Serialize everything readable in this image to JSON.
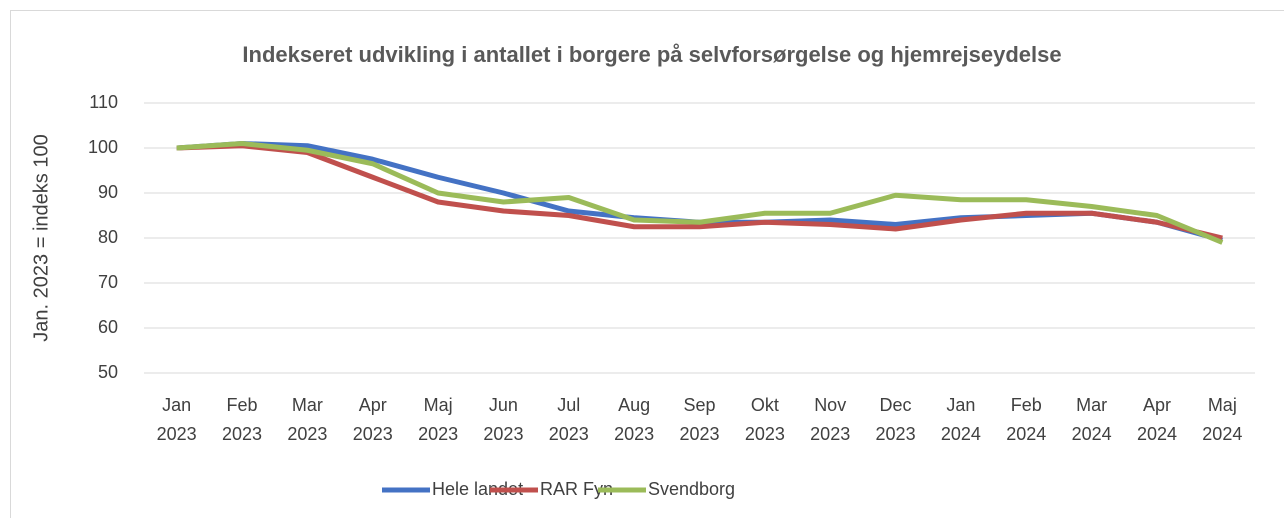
{
  "chart_data": {
    "type": "line",
    "title": "Indekseret udvikling i antallet i borgere på selvforsørgelse og hjemrejseydelse",
    "y_label": "Jan. 2023 = indeks 100",
    "categories": [
      "Jan 2023",
      "Feb 2023",
      "Mar 2023",
      "Apr 2023",
      "Maj 2023",
      "Jun 2023",
      "Jul 2023",
      "Aug 2023",
      "Sep 2023",
      "Okt 2023",
      "Nov 2023",
      "Dec 2023",
      "Jan 2024",
      "Feb 2024",
      "Mar 2024",
      "Apr 2024",
      "Maj 2024"
    ],
    "series": [
      {
        "name": "Hele landet",
        "color": "#4472c4",
        "values": [
          100,
          101,
          100.5,
          97.5,
          93.5,
          90,
          86,
          84.5,
          83.5,
          83.5,
          84,
          83,
          84.5,
          85,
          85.5,
          83.5,
          79.5
        ]
      },
      {
        "name": "RAR Fyn",
        "color": "#c0504d",
        "values": [
          100,
          100.5,
          99,
          93.5,
          88,
          86,
          85,
          82.5,
          82.5,
          83.5,
          83,
          82,
          84,
          85.5,
          85.5,
          83.5,
          80
        ]
      },
      {
        "name": "Svendborg",
        "color": "#9bbb59",
        "values": [
          100,
          101,
          99.5,
          96.5,
          90,
          88,
          89,
          84,
          83.5,
          85.5,
          85.5,
          89.5,
          88.5,
          88.5,
          87,
          85,
          79
        ]
      }
    ],
    "ylim": [
      50,
      110
    ],
    "yticks": [
      50,
      60,
      70,
      80,
      90,
      100,
      110
    ],
    "grid": true,
    "legend": "bottom"
  }
}
